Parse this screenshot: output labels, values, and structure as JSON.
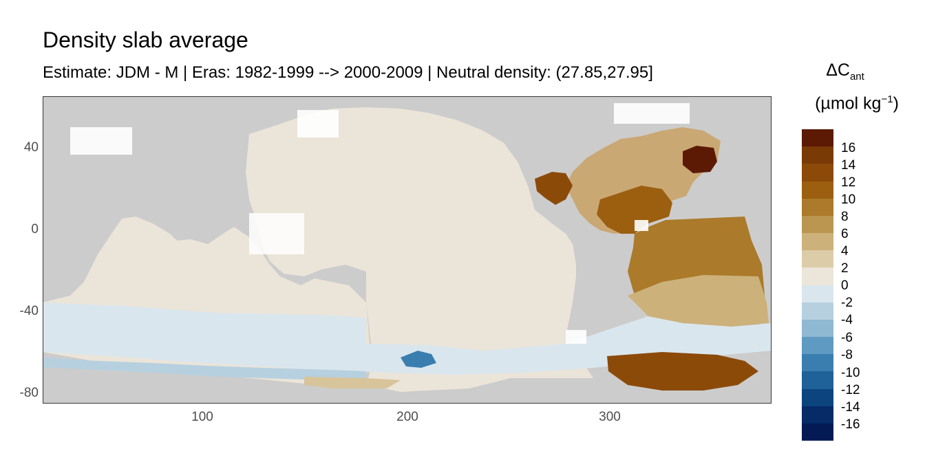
{
  "title": "Density slab average",
  "subtitle": "Estimate: JDM - M | Eras: 1982-1999 --> 2000-2009 | Neutral density: (27.85,27.95]",
  "map": {
    "xlim": [
      20,
      380
    ],
    "ylim": [
      -85,
      65
    ],
    "x_ticks": [
      "100",
      "200",
      "300"
    ],
    "y_ticks": [
      "40",
      "0",
      "-40",
      "-80"
    ],
    "land_color": "#cccccc",
    "no_data_color": "#ffffff",
    "panel_border": "#333333"
  },
  "legend": {
    "title_main": "ΔC",
    "title_sub": "ant",
    "unit_prefix": "(µmol kg",
    "unit_sup": "−1",
    "unit_suffix": ")",
    "labels": [
      "16",
      "14",
      "12",
      "10",
      "8",
      "6",
      "4",
      "2",
      "0",
      "-2",
      "-4",
      "-6",
      "-8",
      "-10",
      "-12",
      "-14",
      "-16"
    ],
    "colors": [
      "#5c1a04",
      "#7a3a06",
      "#8c4a09",
      "#9c5f10",
      "#ab7a2a",
      "#bb9650",
      "#ccb17a",
      "#dccca8",
      "#ece5da",
      "#dae6ee",
      "#b6d0e0",
      "#8fb8d2",
      "#5f9ac2",
      "#3a7eb0",
      "#1f6199",
      "#0c447e",
      "#062b67",
      "#031a55"
    ]
  }
}
